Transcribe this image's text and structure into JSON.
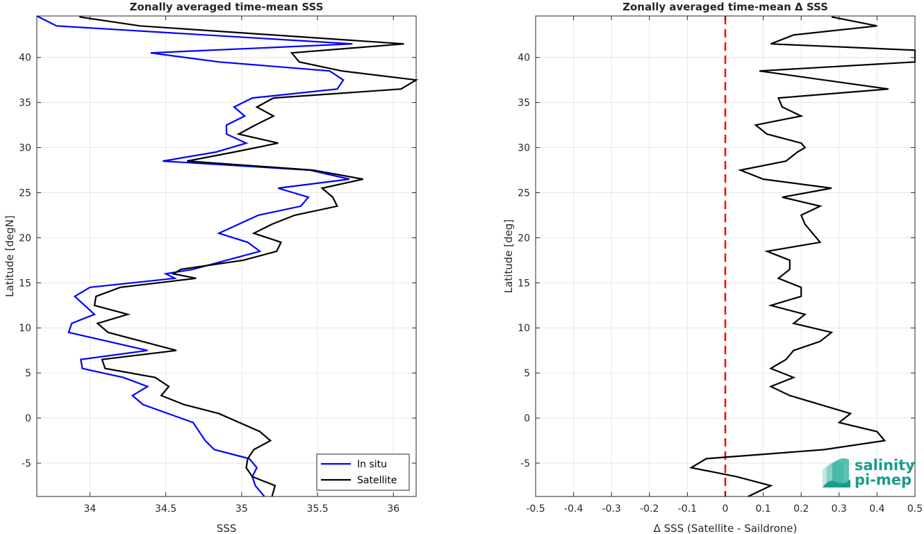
{
  "chart_data": [
    {
      "type": "line",
      "title": "Zonally averaged time-mean SSS",
      "xlabel": "SSS",
      "ylabel": "Latitude [degN]",
      "xlim": [
        33.65,
        36.15
      ],
      "ylim": [
        -8.7,
        44.6
      ],
      "xticks": [
        34,
        34.5,
        35,
        35.5,
        36
      ],
      "xtick_labels": [
        "34",
        "34.5",
        "35",
        "35.5",
        "36"
      ],
      "yticks": [
        -5,
        0,
        5,
        10,
        15,
        20,
        25,
        30,
        35,
        40
      ],
      "ytick_labels": [
        "-5",
        "0",
        "5",
        "10",
        "15",
        "20",
        "25",
        "30",
        "35",
        "40"
      ],
      "grid": true,
      "legend_position": "bottom-right",
      "series": [
        {
          "name": "In situ",
          "color": "#0000ff",
          "points": [
            [
              33.65,
              44.6
            ],
            [
              33.78,
              43.5
            ],
            [
              35.73,
              41.5
            ],
            [
              34.4,
              40.5
            ],
            [
              34.85,
              39.5
            ],
            [
              35.58,
              38.5
            ],
            [
              35.67,
              37.5
            ],
            [
              35.63,
              36.5
            ],
            [
              35.07,
              35.5
            ],
            [
              34.95,
              34.5
            ],
            [
              35.02,
              33.5
            ],
            [
              34.9,
              32.5
            ],
            [
              34.9,
              31.5
            ],
            [
              35.03,
              30.5
            ],
            [
              34.83,
              29.5
            ],
            [
              34.48,
              28.5
            ],
            [
              35.45,
              27.5
            ],
            [
              35.71,
              26.5
            ],
            [
              35.24,
              25.5
            ],
            [
              35.44,
              24.5
            ],
            [
              35.39,
              23.5
            ],
            [
              35.11,
              22.5
            ],
            [
              34.98,
              21.5
            ],
            [
              34.85,
              20.5
            ],
            [
              35.04,
              19.5
            ],
            [
              35.12,
              18.5
            ],
            [
              34.9,
              17.5
            ],
            [
              34.68,
              16.5
            ],
            [
              34.5,
              16.0
            ],
            [
              34.56,
              15.5
            ],
            [
              34.0,
              14.5
            ],
            [
              33.9,
              13.5
            ],
            [
              34.03,
              11.5
            ],
            [
              33.88,
              10.5
            ],
            [
              33.86,
              9.5
            ],
            [
              34.38,
              7.5
            ],
            [
              33.94,
              6.5
            ],
            [
              33.95,
              5.5
            ],
            [
              34.22,
              4.5
            ],
            [
              34.38,
              3.5
            ],
            [
              34.28,
              2.5
            ],
            [
              34.35,
              1.5
            ],
            [
              34.68,
              -0.5
            ],
            [
              34.76,
              -2.5
            ],
            [
              34.82,
              -3.5
            ],
            [
              35.05,
              -4.5
            ],
            [
              35.1,
              -5.5
            ],
            [
              35.07,
              -6.5
            ],
            [
              35.09,
              -7.5
            ],
            [
              35.15,
              -8.7
            ]
          ]
        },
        {
          "name": "Satellite",
          "color": "#000000",
          "points": [
            [
              33.93,
              44.5
            ],
            [
              34.33,
              43.5
            ],
            [
              36.07,
              41.5
            ],
            [
              35.33,
              40.5
            ],
            [
              35.38,
              39.5
            ],
            [
              35.66,
              38.5
            ],
            [
              36.15,
              37.5
            ],
            [
              36.05,
              36.5
            ],
            [
              35.21,
              35.5
            ],
            [
              35.1,
              34.5
            ],
            [
              35.21,
              33.5
            ],
            [
              35.09,
              32.5
            ],
            [
              34.98,
              31.5
            ],
            [
              35.24,
              30.5
            ],
            [
              34.95,
              29.5
            ],
            [
              34.64,
              28.5
            ],
            [
              35.47,
              27.5
            ],
            [
              35.8,
              26.5
            ],
            [
              35.53,
              25.5
            ],
            [
              35.6,
              24.5
            ],
            [
              35.63,
              23.5
            ],
            [
              35.35,
              22.5
            ],
            [
              35.2,
              21.5
            ],
            [
              35.08,
              20.5
            ],
            [
              35.26,
              19.5
            ],
            [
              35.23,
              18.5
            ],
            [
              35.01,
              17.5
            ],
            [
              34.6,
              16.5
            ],
            [
              34.55,
              16.0
            ],
            [
              34.7,
              15.5
            ],
            [
              34.2,
              14.5
            ],
            [
              34.04,
              13.5
            ],
            [
              34.03,
              12.5
            ],
            [
              34.25,
              11.5
            ],
            [
              34.05,
              10.5
            ],
            [
              34.12,
              9.5
            ],
            [
              34.57,
              7.5
            ],
            [
              34.08,
              6.5
            ],
            [
              34.1,
              5.5
            ],
            [
              34.43,
              4.5
            ],
            [
              34.52,
              3.5
            ],
            [
              34.47,
              2.5
            ],
            [
              34.62,
              1.5
            ],
            [
              34.85,
              0.5
            ],
            [
              35.12,
              -1.5
            ],
            [
              35.19,
              -2.5
            ],
            [
              35.08,
              -3.5
            ],
            [
              35.04,
              -4.5
            ],
            [
              35.03,
              -5.5
            ],
            [
              35.07,
              -6.5
            ],
            [
              35.22,
              -7.5
            ],
            [
              35.2,
              -8.7
            ]
          ]
        }
      ]
    },
    {
      "type": "line",
      "title": "Zonally averaged time-mean Δ SSS",
      "xlabel": "Δ SSS (Satellite - Saildrone)",
      "ylabel": "Latitude [deg]",
      "xlim": [
        -0.5,
        0.5
      ],
      "ylim": [
        -8.7,
        44.6
      ],
      "xticks": [
        -0.5,
        -0.4,
        -0.3,
        -0.2,
        -0.1,
        0,
        0.1,
        0.2,
        0.3,
        0.4,
        0.5
      ],
      "xtick_labels": [
        "-0.5",
        "-0.4",
        "-0.3",
        "-0.2",
        "-0.1",
        "0",
        "0.1",
        "0.2",
        "0.3",
        "0.4",
        "0.5"
      ],
      "yticks": [
        -5,
        0,
        5,
        10,
        15,
        20,
        25,
        30,
        35,
        40
      ],
      "ytick_labels": [
        "-5",
        "0",
        "5",
        "10",
        "15",
        "20",
        "25",
        "30",
        "35",
        "40"
      ],
      "grid": true,
      "reference_line": {
        "x": 0,
        "color": "#ff0000",
        "style": "dashed"
      },
      "series": [
        {
          "color": "#000000",
          "points": [
            [
              0.28,
              44.5
            ],
            [
              0.4,
              43.5
            ],
            [
              0.18,
              42.5
            ],
            [
              0.12,
              41.5
            ],
            [
              0.5,
              40.8
            ],
            [
              0.5,
              39.5
            ],
            [
              0.09,
              38.5
            ],
            [
              0.43,
              36.5
            ],
            [
              0.14,
              35.5
            ],
            [
              0.15,
              34.5
            ],
            [
              0.2,
              33.5
            ],
            [
              0.08,
              32.5
            ],
            [
              0.11,
              31.5
            ],
            [
              0.2,
              30.5
            ],
            [
              0.21,
              30.0
            ],
            [
              0.19,
              29.5
            ],
            [
              0.16,
              28.5
            ],
            [
              0.04,
              27.5
            ],
            [
              0.1,
              26.5
            ],
            [
              0.28,
              25.5
            ],
            [
              0.15,
              24.5
            ],
            [
              0.25,
              23.5
            ],
            [
              0.2,
              22.5
            ],
            [
              0.21,
              21.5
            ],
            [
              0.25,
              19.5
            ],
            [
              0.11,
              18.5
            ],
            [
              0.17,
              17.5
            ],
            [
              0.17,
              16.5
            ],
            [
              0.14,
              15.5
            ],
            [
              0.2,
              14.5
            ],
            [
              0.2,
              13.5
            ],
            [
              0.12,
              12.5
            ],
            [
              0.21,
              11.5
            ],
            [
              0.18,
              10.5
            ],
            [
              0.28,
              9.5
            ],
            [
              0.25,
              8.5
            ],
            [
              0.18,
              7.5
            ],
            [
              0.16,
              6.5
            ],
            [
              0.12,
              5.5
            ],
            [
              0.18,
              4.5
            ],
            [
              0.12,
              3.5
            ],
            [
              0.17,
              2.5
            ],
            [
              0.33,
              0.5
            ],
            [
              0.3,
              -0.5
            ],
            [
              0.4,
              -1.5
            ],
            [
              0.42,
              -2.5
            ],
            [
              0.26,
              -3.5
            ],
            [
              -0.05,
              -4.5
            ],
            [
              -0.09,
              -5.5
            ],
            [
              0.03,
              -6.5
            ],
            [
              0.12,
              -7.5
            ],
            [
              0.06,
              -8.7
            ]
          ]
        }
      ]
    }
  ],
  "logo": {
    "line1": "salinity",
    "line2": "pi-mep"
  },
  "colors": {
    "axis": "#262626",
    "grid": "#e6e6e6",
    "logo_teal": "#1a9c8c"
  }
}
